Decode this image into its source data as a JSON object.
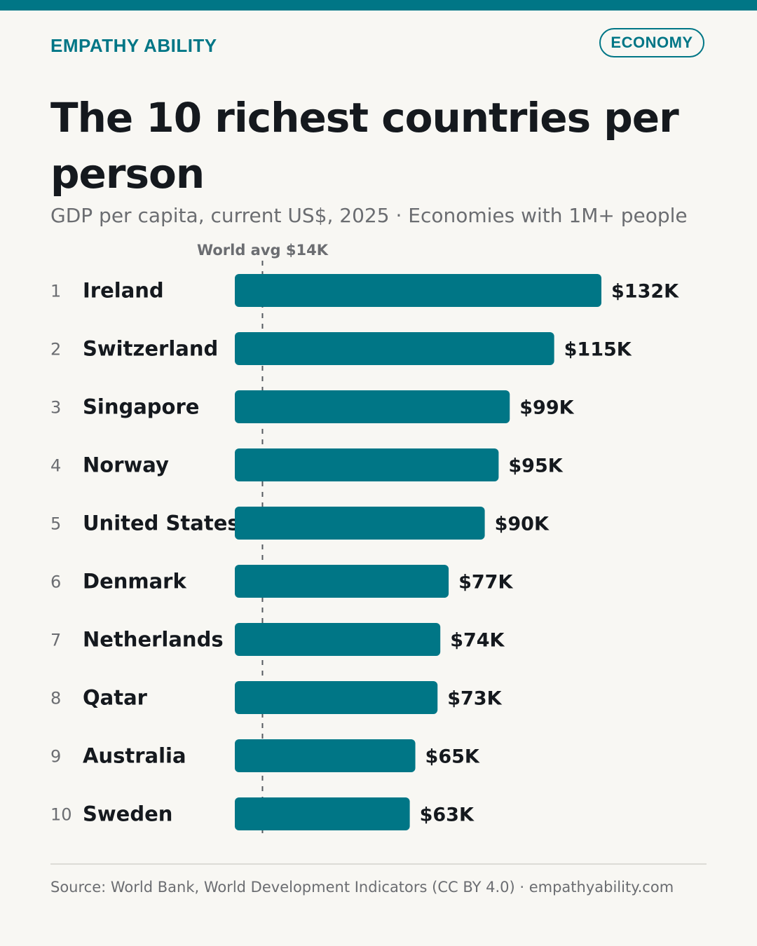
{
  "brand": "EMPATHY ABILITY",
  "tag": "ECONOMY",
  "source": "Source: World Bank, World Development Indicators (CC BY 4.0) · empathyability.com",
  "colors": {
    "accent": "#007686",
    "title": "#15191e",
    "muted": "#6b6d71",
    "background": "#f8f7f3",
    "divider": "#dcdbd6",
    "reference_line": "#555a60"
  },
  "chart_data": {
    "type": "bar",
    "orientation": "horizontal",
    "title": "The 10 richest countries per person",
    "subtitle": "GDP per capita, current US$, 2025 · Economies with 1M+ people",
    "ranks": [
      "1",
      "2",
      "3",
      "4",
      "5",
      "6",
      "7",
      "8",
      "9",
      "10"
    ],
    "categories": [
      "Ireland",
      "Switzerland",
      "Singapore",
      "Norway",
      "United States",
      "Denmark",
      "Netherlands",
      "Qatar",
      "Australia",
      "Sweden"
    ],
    "values": [
      132,
      115,
      99,
      95,
      90,
      77,
      74,
      73,
      65,
      63
    ],
    "value_labels": [
      "$132K",
      "$115K",
      "$99K",
      "$95K",
      "$90K",
      "$77K",
      "$74K",
      "$73K",
      "$65K",
      "$63K"
    ],
    "reference_line": {
      "label": "World avg $14K",
      "value": 14
    },
    "xlim": [
      0,
      132
    ],
    "grid": false,
    "legend": "none"
  }
}
